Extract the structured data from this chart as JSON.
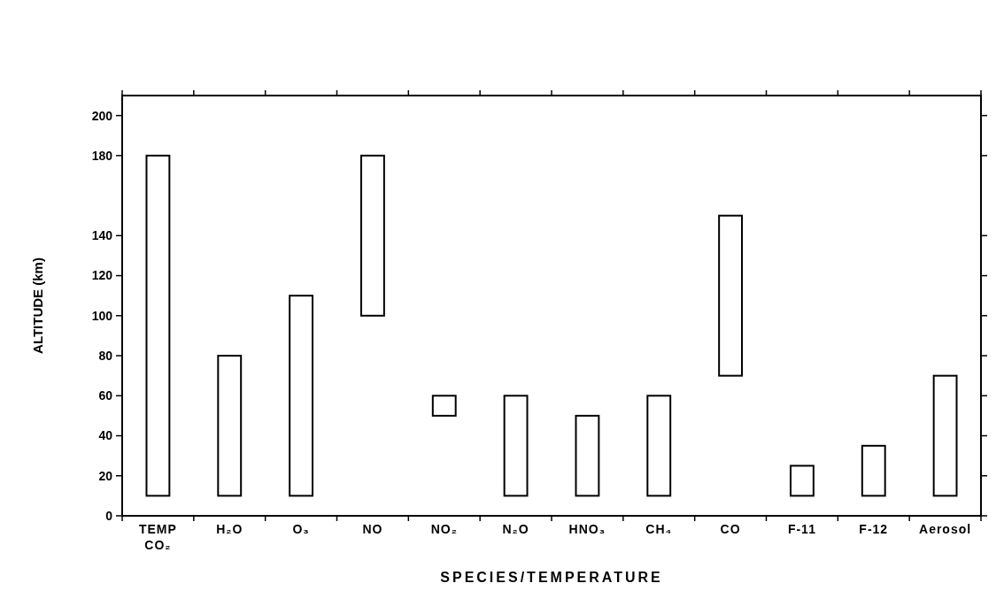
{
  "chart_data": {
    "type": "bar",
    "xlabel": "SPECIES/TEMPERATURE",
    "ylabel": "ALTITUDE (km)",
    "categories": [
      "TEMP\nCO₂",
      "H₂O",
      "O₃",
      "NO",
      "NO₂",
      "N₂O",
      "HNO₃",
      "CH₄",
      "CO",
      "F-11",
      "F-12",
      "Aerosol"
    ],
    "base": [
      10,
      10,
      10,
      100,
      50,
      10,
      10,
      10,
      70,
      10,
      10,
      10
    ],
    "values": [
      170,
      70,
      100,
      80,
      10,
      50,
      40,
      50,
      80,
      15,
      25,
      60
    ],
    "color": "#000000",
    "ylim": [
      0,
      210
    ],
    "yticks": [
      0,
      20,
      40,
      60,
      80,
      100,
      120,
      140,
      180,
      200
    ],
    "grid": false
  }
}
